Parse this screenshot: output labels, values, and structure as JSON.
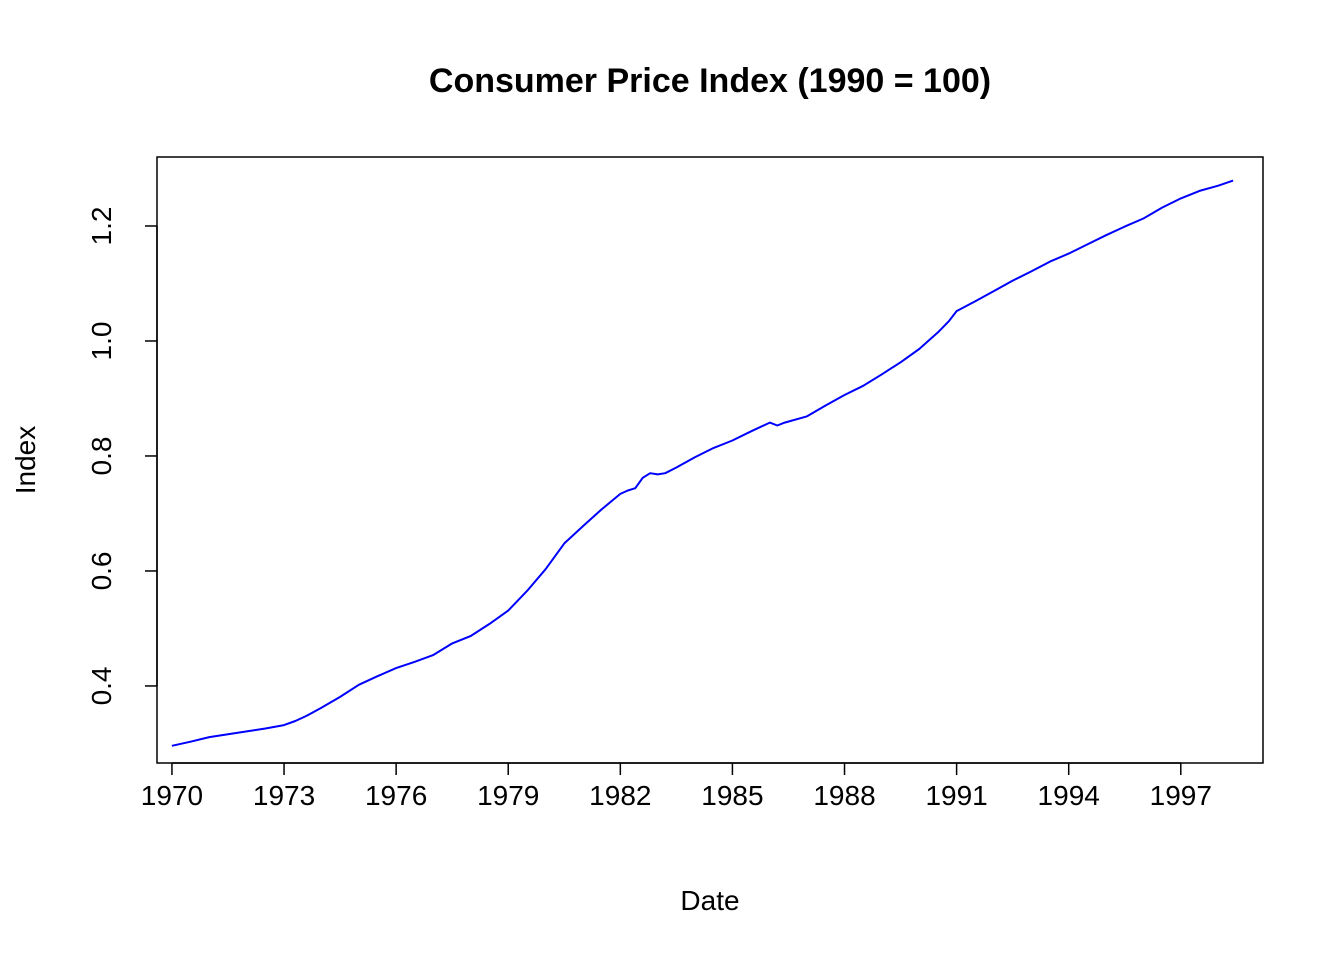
{
  "chart_data": {
    "type": "line",
    "title": "Consumer Price Index (1990 = 100)",
    "xlabel": "Date",
    "ylabel": "Index",
    "xlim": [
      1969.6,
      1999.2
    ],
    "ylim": [
      0.266,
      1.32
    ],
    "x_ticks": [
      1970,
      1973,
      1976,
      1979,
      1982,
      1985,
      1988,
      1991,
      1994,
      1997
    ],
    "x_tick_labels": [
      "1970",
      "1973",
      "1976",
      "1979",
      "1982",
      "1985",
      "1988",
      "1991",
      "1994",
      "1997"
    ],
    "y_ticks": [
      0.4,
      0.6,
      0.8,
      1.0,
      1.2
    ],
    "y_tick_labels": [
      "0.4",
      "0.6",
      "0.8",
      "1.0",
      "1.2"
    ],
    "grid": false,
    "legend": "none",
    "series": [
      {
        "color": "#0000ff",
        "x": [
          1970.0,
          1970.5,
          1971.0,
          1971.5,
          1972.0,
          1972.5,
          1973.0,
          1973.3,
          1973.6,
          1974.0,
          1974.5,
          1975.0,
          1975.5,
          1976.0,
          1976.5,
          1977.0,
          1977.5,
          1978.0,
          1978.5,
          1979.0,
          1979.5,
          1980.0,
          1980.5,
          1981.0,
          1981.5,
          1982.0,
          1982.2,
          1982.4,
          1982.6,
          1982.8,
          1983.0,
          1983.2,
          1983.5,
          1984.0,
          1984.5,
          1985.0,
          1985.5,
          1986.0,
          1986.2,
          1986.4,
          1987.0,
          1987.5,
          1988.0,
          1988.5,
          1989.0,
          1989.5,
          1990.0,
          1990.5,
          1990.8,
          1991.0,
          1991.5,
          1992.0,
          1992.5,
          1993.0,
          1993.5,
          1994.0,
          1994.5,
          1995.0,
          1995.5,
          1996.0,
          1996.5,
          1997.0,
          1997.5,
          1998.0,
          1998.4
        ],
        "y": [
          0.296,
          0.303,
          0.311,
          0.316,
          0.321,
          0.326,
          0.332,
          0.339,
          0.348,
          0.362,
          0.381,
          0.402,
          0.417,
          0.431,
          0.442,
          0.454,
          0.474,
          0.487,
          0.508,
          0.531,
          0.565,
          0.603,
          0.648,
          0.678,
          0.707,
          0.734,
          0.74,
          0.744,
          0.762,
          0.77,
          0.768,
          0.77,
          0.78,
          0.798,
          0.814,
          0.827,
          0.843,
          0.858,
          0.853,
          0.858,
          0.869,
          0.888,
          0.906,
          0.922,
          0.942,
          0.963,
          0.986,
          1.015,
          1.035,
          1.052,
          1.069,
          1.087,
          1.105,
          1.121,
          1.138,
          1.152,
          1.168,
          1.184,
          1.199,
          1.213,
          1.232,
          1.248,
          1.261,
          1.27,
          1.279
        ]
      }
    ]
  }
}
